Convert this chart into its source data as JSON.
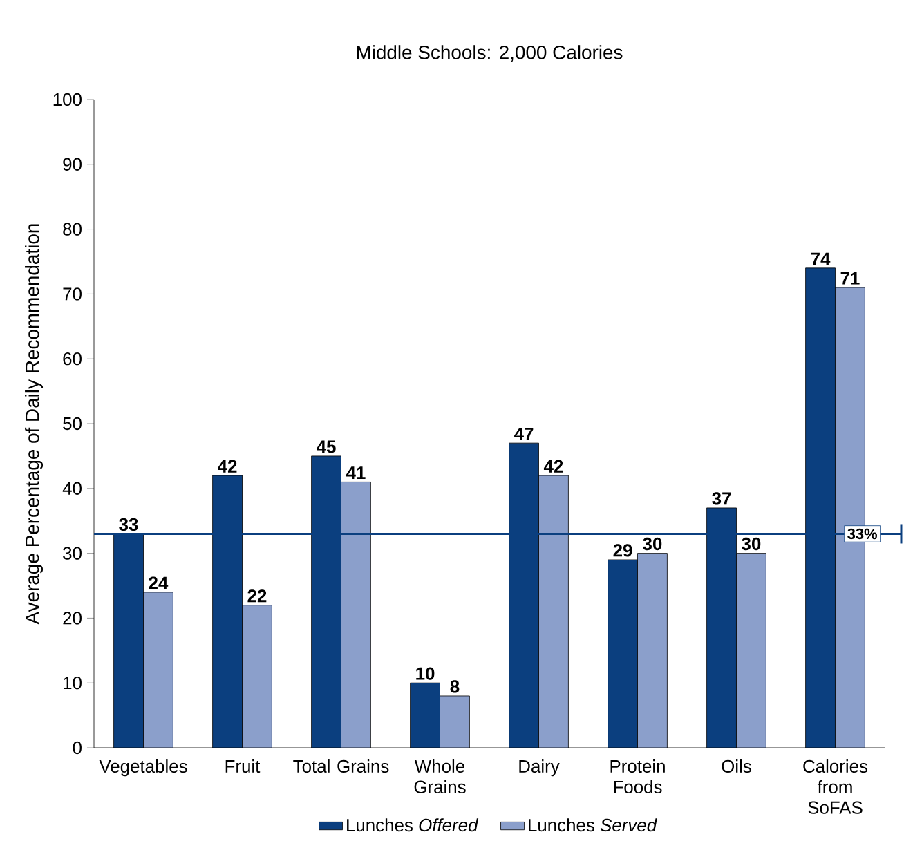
{
  "chart_data": {
    "type": "bar",
    "title": "Middle Schools: 2,000 Calories",
    "ylabel": "Average Percentage of Daily Recommendation",
    "categories": [
      "Vegetables",
      "Fruit",
      "Total Grains",
      "Whole Grains",
      "Dairy",
      "Protein Foods",
      "Oils",
      "Calories from SoFAS"
    ],
    "series": [
      {
        "name": "Lunches *Offered*",
        "color": "#0b3f7f",
        "values": [
          33,
          42,
          45,
          10,
          47,
          29,
          37,
          74
        ]
      },
      {
        "name": "Lunches *Served*",
        "color": "#8b9fcb",
        "values": [
          24,
          22,
          41,
          8,
          42,
          30,
          30,
          71
        ]
      }
    ],
    "ylim": [
      0,
      100
    ],
    "yticks": [
      0,
      10,
      20,
      30,
      40,
      50,
      60,
      70,
      80,
      90,
      100
    ],
    "ref_lines": [
      {
        "axis": "y",
        "value": 33,
        "label": "33%",
        "color": "#0b3f7f"
      }
    ],
    "data_labels": true,
    "legend": "bottom"
  }
}
